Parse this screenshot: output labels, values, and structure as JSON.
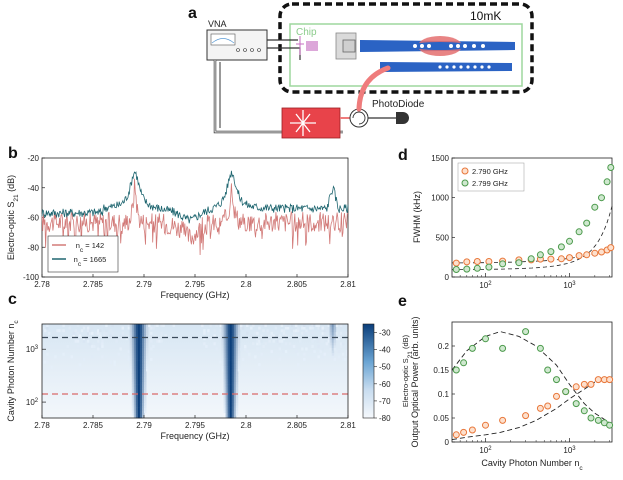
{
  "panels": {
    "a": "a",
    "b": "b",
    "c": "c",
    "d": "d",
    "e": "e"
  },
  "schematic": {
    "vna_label": "VNA",
    "temperature": "10mK",
    "chip_label": "Chip",
    "photodiode_label": "PhotoDiode"
  },
  "colors": {
    "red_series": "#d27a78",
    "teal_series": "#1f6670",
    "orange_marker": "#e8773a",
    "green_marker": "#4c9a4c",
    "chip_border": "#9dd79d",
    "waveguide": "#2b63c4",
    "laser": "#e8434a",
    "beam": "#ef7c7c"
  },
  "chart_data": [
    {
      "id": "b",
      "type": "line",
      "xlabel": "Frequency (GHz)",
      "ylabel": "Electro-optic S21 (dB)",
      "xlim": [
        2.78,
        2.81
      ],
      "ylim": [
        -100,
        -20
      ],
      "xticks": [
        "2.78",
        "2.785",
        "2.79",
        "2.795",
        "2.8",
        "2.805",
        "2.81"
      ],
      "yticks": [
        "-20",
        "-40",
        "-60",
        "-80",
        "-100"
      ],
      "legend": [
        "n_c = 142",
        "n_c = 1665"
      ],
      "series": [
        {
          "name": "n_c = 142",
          "peaks": [
            2.7891,
            2.7986
          ],
          "peak_db": [
            -39,
            -38
          ],
          "baseline_db": -70
        },
        {
          "name": "n_c = 1665",
          "peaks": [
            2.7891,
            2.7986,
            2.8085
          ],
          "peak_db": [
            -29,
            -29,
            -41
          ],
          "baseline_db": -55
        }
      ]
    },
    {
      "id": "c",
      "type": "heatmap",
      "xlabel": "Frequency (GHz)",
      "ylabel": "Cavity Photon Number n_c",
      "xlim": [
        2.78,
        2.81
      ],
      "ylim_log": [
        50,
        3000
      ],
      "xticks": [
        "2.78",
        "2.785",
        "2.79",
        "2.795",
        "2.8",
        "2.805",
        "2.81"
      ],
      "yticks": [
        "10²",
        "10³"
      ],
      "dashed_lines": [
        1665,
        142
      ],
      "colorbar_label": "Electro-optic S21 (dB)",
      "colorbar_ticks": [
        "-30",
        "-40",
        "-50",
        "-60",
        "-70",
        "-80"
      ],
      "clim": [
        -80,
        -25
      ]
    },
    {
      "id": "d",
      "type": "scatter",
      "ylabel": "FWHM (kHz)",
      "ylim": [
        0,
        1500
      ],
      "xlim_log": [
        40,
        3200
      ],
      "yticks": [
        "0",
        "500",
        "1000",
        "1500"
      ],
      "xticks": [
        "10²",
        "10³"
      ],
      "legend": [
        "2.790 GHz",
        "2.799 GHz"
      ],
      "series": [
        {
          "name": "2.790 GHz",
          "x": [
            45,
            60,
            80,
            110,
            160,
            250,
            350,
            450,
            600,
            800,
            1000,
            1300,
            1600,
            2000,
            2400,
            2800,
            3100
          ],
          "y": [
            175,
            190,
            195,
            195,
            200,
            215,
            215,
            225,
            225,
            230,
            245,
            270,
            280,
            300,
            315,
            340,
            370
          ]
        },
        {
          "name": "2.799 GHz",
          "x": [
            45,
            60,
            80,
            110,
            160,
            250,
            350,
            450,
            600,
            800,
            1000,
            1300,
            1600,
            2000,
            2400,
            2800,
            3100
          ],
          "y": [
            95,
            100,
            110,
            125,
            165,
            180,
            230,
            280,
            320,
            380,
            450,
            570,
            680,
            880,
            1000,
            1200,
            1380
          ]
        }
      ]
    },
    {
      "id": "e",
      "type": "scatter",
      "xlabel": "Cavity Photon Number n_c",
      "ylabel": "Output Optical Power (arb. units)",
      "ylim": [
        0,
        0.25
      ],
      "xlim_log": [
        40,
        3200
      ],
      "yticks": [
        "0",
        "0.05",
        "0.1",
        "0.15",
        "0.2"
      ],
      "xticks": [
        "10²",
        "10³"
      ],
      "series": [
        {
          "name": "2.790 GHz",
          "x": [
            45,
            55,
            70,
            100,
            160,
            300,
            450,
            550,
            700,
            900,
            1200,
            1500,
            1800,
            2200,
            2600,
            3000
          ],
          "y": [
            0.015,
            0.02,
            0.025,
            0.035,
            0.045,
            0.055,
            0.07,
            0.075,
            0.095,
            0.105,
            0.115,
            0.12,
            0.12,
            0.13,
            0.13,
            0.13
          ]
        },
        {
          "name": "2.799 GHz",
          "x": [
            45,
            55,
            70,
            100,
            160,
            300,
            450,
            550,
            700,
            900,
            1200,
            1500,
            1800,
            2200,
            2600,
            3000
          ],
          "y": [
            0.15,
            0.165,
            0.195,
            0.215,
            0.195,
            0.23,
            0.195,
            0.15,
            0.13,
            0.105,
            0.08,
            0.065,
            0.05,
            0.045,
            0.04,
            0.035
          ]
        }
      ],
      "fit_curves": [
        {
          "x": [
            40,
            60,
            100,
            150,
            250,
            400,
            700,
            1000,
            1500,
            2000,
            3000
          ],
          "y": [
            0.15,
            0.19,
            0.22,
            0.23,
            0.22,
            0.2,
            0.16,
            0.12,
            0.08,
            0.06,
            0.04
          ]
        },
        {
          "x": [
            40,
            60,
            100,
            150,
            250,
            400,
            700,
            1000,
            1500,
            2000,
            3000
          ],
          "y": [
            0.005,
            0.01,
            0.015,
            0.02,
            0.03,
            0.045,
            0.07,
            0.09,
            0.11,
            0.125,
            0.135
          ]
        }
      ]
    }
  ]
}
